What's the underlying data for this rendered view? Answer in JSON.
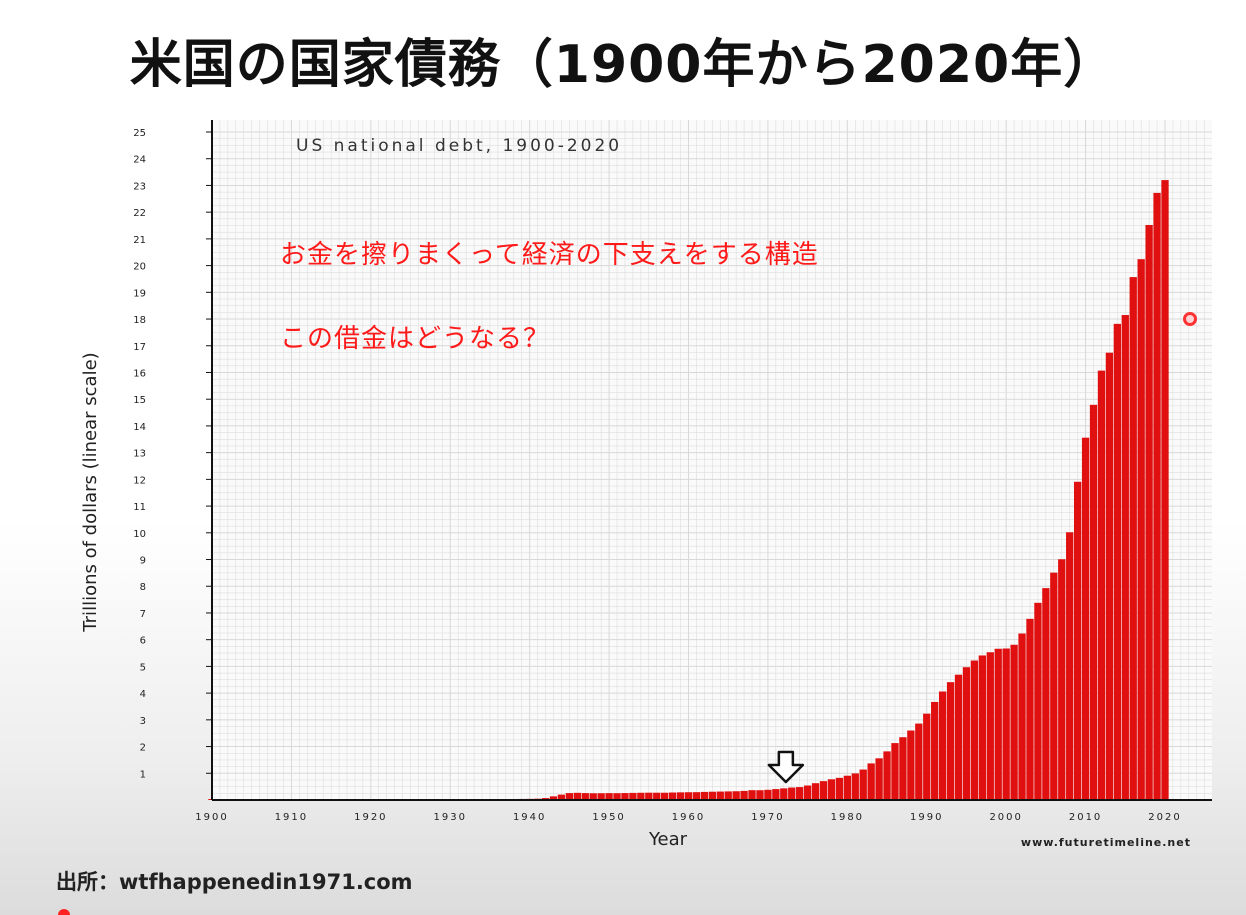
{
  "slide": {
    "title": "米国の国家債務（1900年から2020年）",
    "annotation_1": "お金を擦りまくって経済の下支えをする構造",
    "annotation_2": "この借金はどうなる？",
    "source": "出所：wtfhappenedin1971.com"
  },
  "colors": {
    "bar": "#e01010",
    "annotation_text": "#ff1a1a",
    "grid": "#d8d8d8"
  },
  "icons": [
    "down-arrow-icon",
    "red-dot-marker"
  ],
  "chart_data": {
    "type": "bar",
    "title": "US national debt, 1900-2020",
    "xlabel": "Year",
    "ylabel": "Trillions of dollars (linear scale)",
    "watermark": "www.futuretimeline.net",
    "ylim": [
      0,
      25
    ],
    "xlim": [
      1900,
      2020
    ],
    "yticks": [
      1,
      2,
      3,
      4,
      5,
      6,
      7,
      8,
      9,
      10,
      11,
      12,
      13,
      14,
      15,
      16,
      17,
      18,
      19,
      20,
      21,
      22,
      23,
      24,
      25
    ],
    "xticks": [
      1900,
      1910,
      1920,
      1930,
      1940,
      1950,
      1960,
      1970,
      1980,
      1990,
      2000,
      2010,
      2020
    ],
    "grid": true,
    "annotation_arrow_year": 1971,
    "x": [
      1900,
      1901,
      1902,
      1903,
      1904,
      1905,
      1906,
      1907,
      1908,
      1909,
      1910,
      1911,
      1912,
      1913,
      1914,
      1915,
      1916,
      1917,
      1918,
      1919,
      1920,
      1921,
      1922,
      1923,
      1924,
      1925,
      1926,
      1927,
      1928,
      1929,
      1930,
      1931,
      1932,
      1933,
      1934,
      1935,
      1936,
      1937,
      1938,
      1939,
      1940,
      1941,
      1942,
      1943,
      1944,
      1945,
      1946,
      1947,
      1948,
      1949,
      1950,
      1951,
      1952,
      1953,
      1954,
      1955,
      1956,
      1957,
      1958,
      1959,
      1960,
      1961,
      1962,
      1963,
      1964,
      1965,
      1966,
      1967,
      1968,
      1969,
      1970,
      1971,
      1972,
      1973,
      1974,
      1975,
      1976,
      1977,
      1978,
      1979,
      1980,
      1981,
      1982,
      1983,
      1984,
      1985,
      1986,
      1987,
      1988,
      1989,
      1990,
      1991,
      1992,
      1993,
      1994,
      1995,
      1996,
      1997,
      1998,
      1999,
      2000,
      2001,
      2002,
      2003,
      2004,
      2005,
      2006,
      2007,
      2008,
      2009,
      2010,
      2011,
      2012,
      2013,
      2014,
      2015,
      2016,
      2017,
      2018,
      2019,
      2020
    ],
    "values": [
      0.002,
      0.002,
      0.002,
      0.002,
      0.002,
      0.002,
      0.002,
      0.002,
      0.002,
      0.002,
      0.002,
      0.002,
      0.002,
      0.002,
      0.002,
      0.002,
      0.002,
      0.003,
      0.012,
      0.025,
      0.026,
      0.024,
      0.023,
      0.022,
      0.021,
      0.02,
      0.019,
      0.018,
      0.018,
      0.017,
      0.016,
      0.017,
      0.019,
      0.022,
      0.027,
      0.029,
      0.034,
      0.036,
      0.037,
      0.04,
      0.043,
      0.049,
      0.072,
      0.137,
      0.201,
      0.259,
      0.269,
      0.258,
      0.252,
      0.253,
      0.257,
      0.255,
      0.259,
      0.266,
      0.271,
      0.274,
      0.273,
      0.272,
      0.28,
      0.287,
      0.291,
      0.293,
      0.303,
      0.31,
      0.316,
      0.322,
      0.328,
      0.34,
      0.368,
      0.366,
      0.381,
      0.408,
      0.436,
      0.466,
      0.484,
      0.542,
      0.629,
      0.706,
      0.776,
      0.829,
      0.909,
      0.995,
      1.14,
      1.37,
      1.56,
      1.82,
      2.13,
      2.35,
      2.6,
      2.86,
      3.23,
      3.67,
      4.06,
      4.41,
      4.69,
      4.97,
      5.22,
      5.41,
      5.53,
      5.66,
      5.67,
      5.81,
      6.23,
      6.78,
      7.38,
      7.93,
      8.51,
      9.01,
      10.02,
      11.91,
      13.56,
      14.79,
      16.07,
      16.74,
      17.82,
      18.15,
      19.57,
      20.24,
      21.52,
      22.72,
      23.2
    ]
  }
}
